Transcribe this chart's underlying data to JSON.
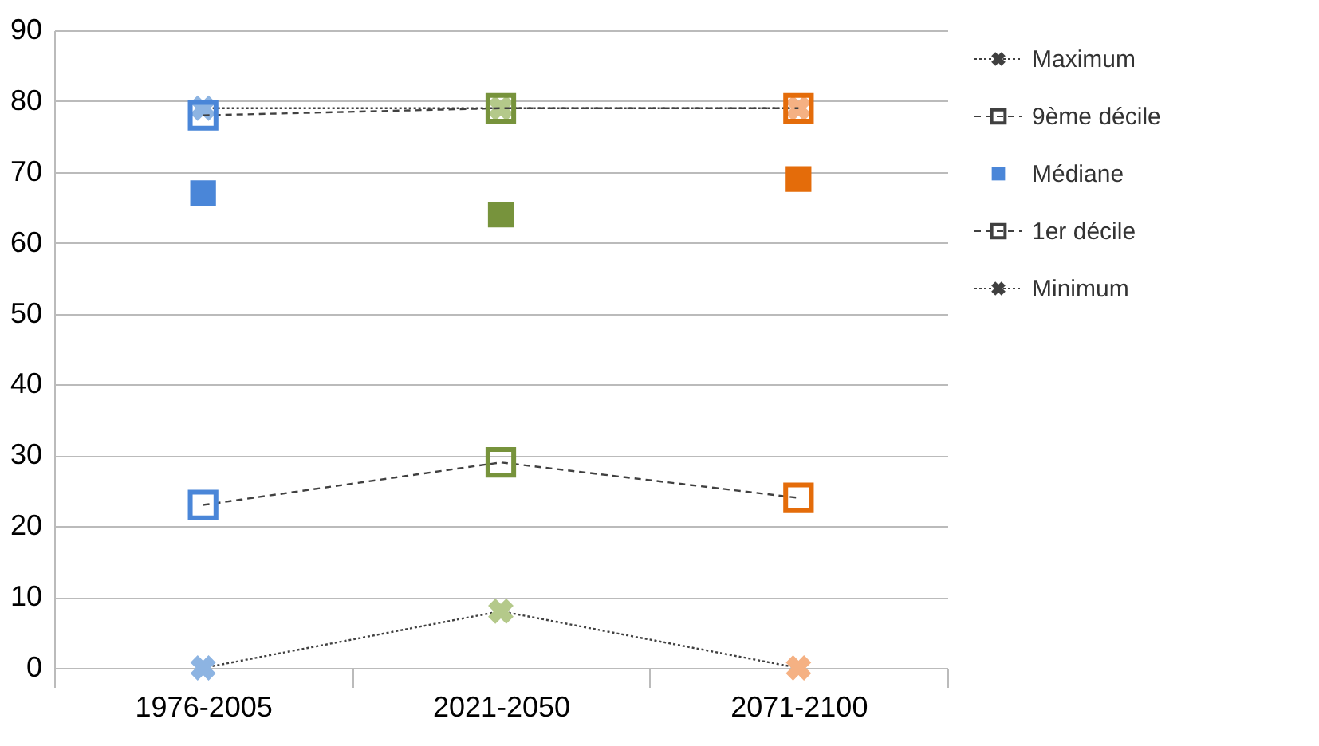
{
  "chart_data": {
    "type": "line",
    "categories": [
      "1976-2005",
      "2021-2050",
      "2071-2100"
    ],
    "ylim": [
      0,
      90
    ],
    "yticks": [
      0,
      10,
      20,
      30,
      40,
      50,
      60,
      70,
      80,
      90
    ],
    "grid": "y",
    "legend": "right",
    "series": [
      {
        "name": "Maximum",
        "color": "#404040",
        "line_style": "dotted",
        "marker": "cross",
        "colors": [
          "#8db4e2",
          "#b4c98a",
          "#f5b183"
        ],
        "values": [
          79,
          79,
          79
        ]
      },
      {
        "name": "9ème décile",
        "color": "#404040",
        "line_style": "dashed",
        "marker": "square",
        "colors": [
          "#4a86d8",
          "#77933c",
          "#e46c0a"
        ],
        "values": [
          78,
          79,
          79
        ]
      },
      {
        "name": "Médiane",
        "type": "scatter",
        "color": "#4a86d8",
        "marker": "square",
        "colors": [
          "#4a86d8",
          "#77933c",
          "#e46c0a"
        ],
        "values": [
          67,
          64,
          69
        ]
      },
      {
        "name": "1er décile",
        "color": "#404040",
        "line_style": "dashed",
        "marker": "square",
        "colors": [
          "#4a86d8",
          "#77933c",
          "#e46c0a"
        ],
        "values": [
          23,
          29,
          24
        ]
      },
      {
        "name": "Minimum",
        "color": "#404040",
        "line_style": "dotted",
        "marker": "cross",
        "colors": [
          "#8db4e2",
          "#b4c98a",
          "#f5b183"
        ],
        "values": [
          0,
          8,
          0
        ]
      }
    ]
  }
}
